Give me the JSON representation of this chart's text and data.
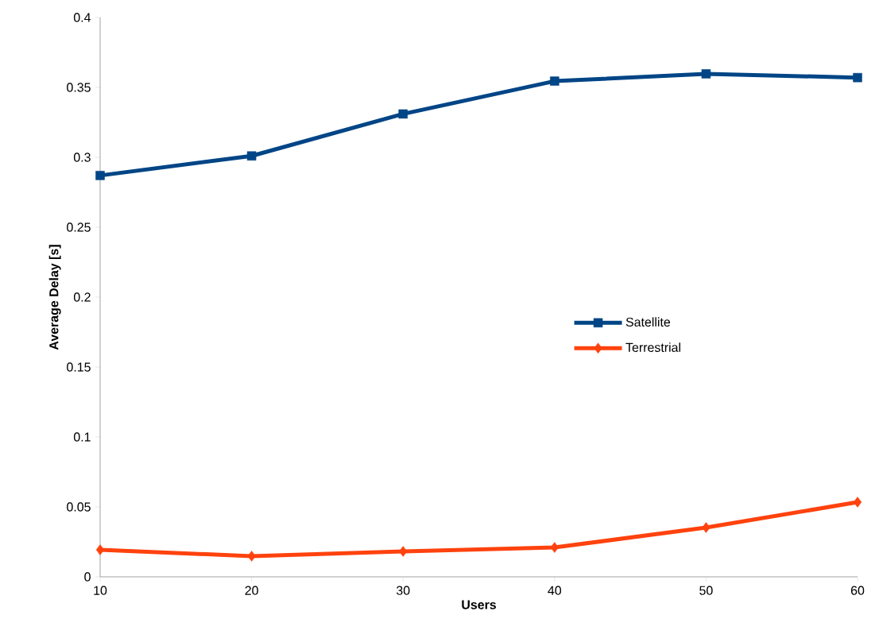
{
  "chart_data": {
    "type": "line",
    "xlabel": "Users",
    "ylabel": "Average Delay [s]",
    "x": [
      10,
      20,
      30,
      40,
      50,
      60
    ],
    "series": [
      {
        "name": "Satellite",
        "color": "#004586",
        "marker": "square",
        "values": [
          0.287,
          0.301,
          0.331,
          0.3545,
          0.3597,
          0.357
        ]
      },
      {
        "name": "Terrestrial",
        "color": "#ff420e",
        "marker": "diamond",
        "values": [
          0.0193,
          0.0148,
          0.0182,
          0.021,
          0.0352,
          0.0534
        ]
      }
    ],
    "xlim": [
      10,
      60
    ],
    "xticks": [
      10,
      20,
      30,
      40,
      50,
      60
    ],
    "ylim": [
      0,
      0.4
    ],
    "yticks": [
      0,
      0.05,
      0.1,
      0.15,
      0.2,
      0.25,
      0.3,
      0.35,
      0.4
    ],
    "grid": false,
    "legend": "right",
    "line_style": "solid"
  }
}
